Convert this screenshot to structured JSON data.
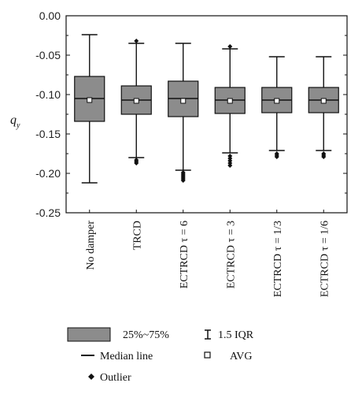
{
  "chart_data": {
    "type": "box",
    "ylabel_main": "q",
    "ylabel_sub": "y",
    "ylim": [
      -0.25,
      0.0
    ],
    "yticks": [
      0.0,
      -0.05,
      -0.1,
      -0.15,
      -0.2,
      -0.25
    ],
    "ytick_labels": [
      "0.00",
      "-0.05",
      "-0.10",
      "-0.15",
      "-0.20",
      "-0.25"
    ],
    "grid": false,
    "box_color": "#8c8c8c",
    "categories": [
      "No damper",
      "TRCD",
      "ECTRCD τ = 6",
      "ECTRCD τ = 3",
      "ECTRCD τ = 1/3",
      "ECTRCD τ = 1/6"
    ],
    "boxes": [
      {
        "whisker_low": -0.212,
        "q1": -0.134,
        "median": -0.105,
        "q3": -0.077,
        "whisker_high": -0.024,
        "avg": -0.107,
        "outliers": []
      },
      {
        "whisker_low": -0.18,
        "q1": -0.125,
        "median": -0.107,
        "q3": -0.089,
        "whisker_high": -0.035,
        "avg": -0.108,
        "outliers": [
          -0.032,
          -0.183,
          -0.185,
          -0.187
        ]
      },
      {
        "whisker_low": -0.196,
        "q1": -0.128,
        "median": -0.105,
        "q3": -0.083,
        "whisker_high": -0.035,
        "avg": -0.108,
        "outliers": [
          -0.199,
          -0.201,
          -0.203,
          -0.205,
          -0.207,
          -0.209
        ]
      },
      {
        "whisker_low": -0.174,
        "q1": -0.124,
        "median": -0.107,
        "q3": -0.091,
        "whisker_high": -0.042,
        "avg": -0.108,
        "outliers": [
          -0.039,
          -0.178,
          -0.181,
          -0.184,
          -0.187,
          -0.19
        ]
      },
      {
        "whisker_low": -0.171,
        "q1": -0.123,
        "median": -0.107,
        "q3": -0.091,
        "whisker_high": -0.052,
        "avg": -0.108,
        "outliers": [
          -0.175,
          -0.177,
          -0.179
        ]
      },
      {
        "whisker_low": -0.171,
        "q1": -0.123,
        "median": -0.107,
        "q3": -0.091,
        "whisker_high": -0.052,
        "avg": -0.108,
        "outliers": [
          -0.175,
          -0.177,
          -0.179
        ]
      }
    ],
    "legend": {
      "placement": "bottom",
      "box_label": "25%~75%",
      "median_label": "Median line",
      "outlier_label": "Outlier",
      "whisker_label": "1.5 IQR",
      "avg_label": "AVG"
    }
  }
}
